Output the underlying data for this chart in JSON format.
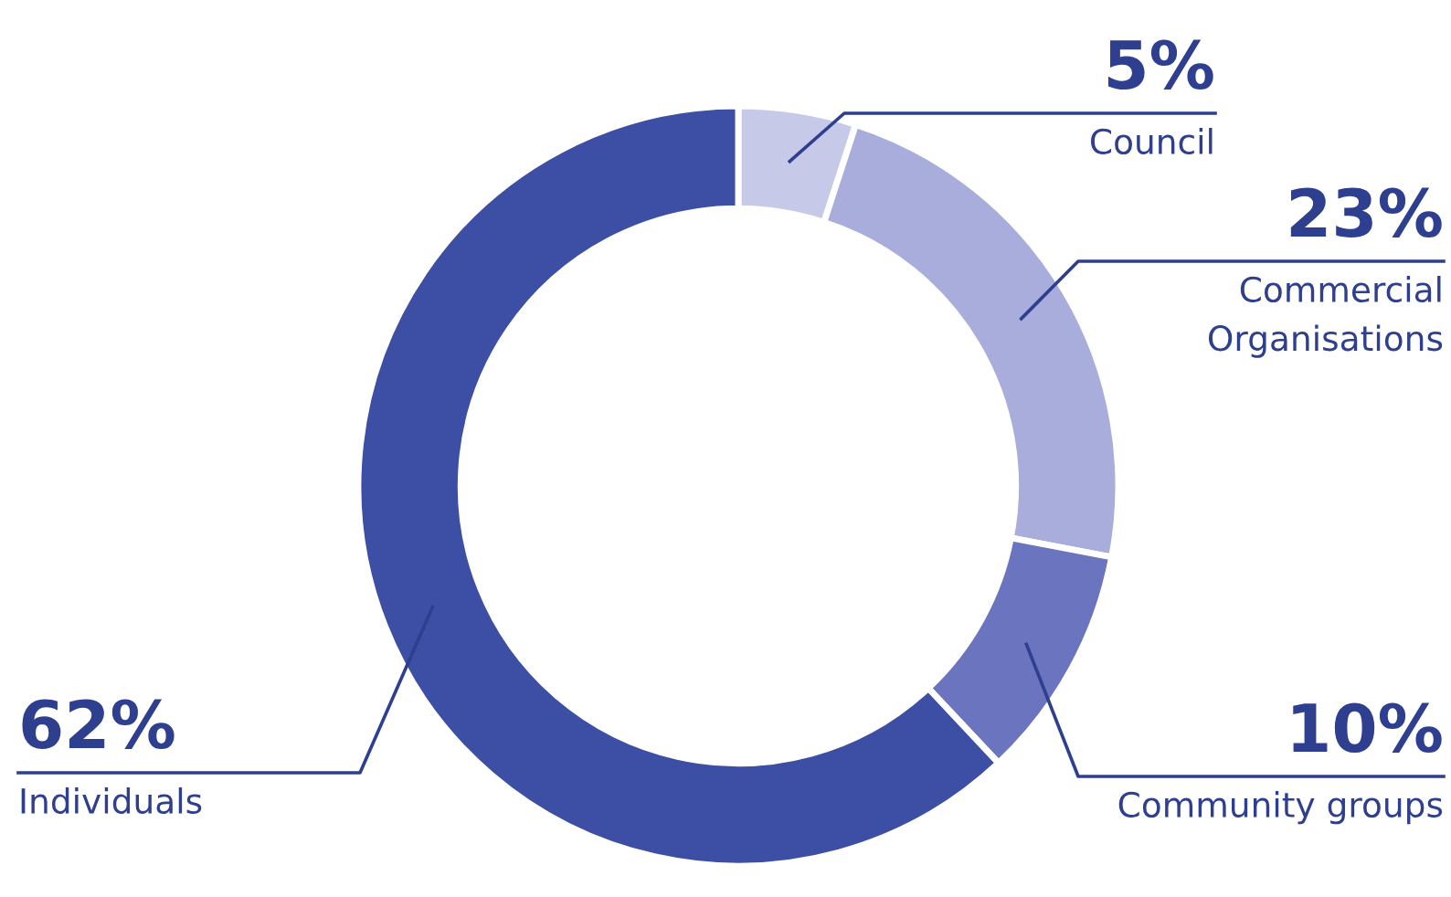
{
  "chart_data": {
    "type": "donut",
    "categories": [
      "Council",
      "Commercial\nOrganisations",
      "Community groups",
      "Individuals"
    ],
    "values": [
      5,
      23,
      10,
      62
    ],
    "colors": [
      "#c6c9e7",
      "#a8addb",
      "#6a74bf",
      "#3d4ea5"
    ],
    "value_labels": [
      "5%",
      "23%",
      "10%",
      "62%"
    ],
    "legend": false
  }
}
